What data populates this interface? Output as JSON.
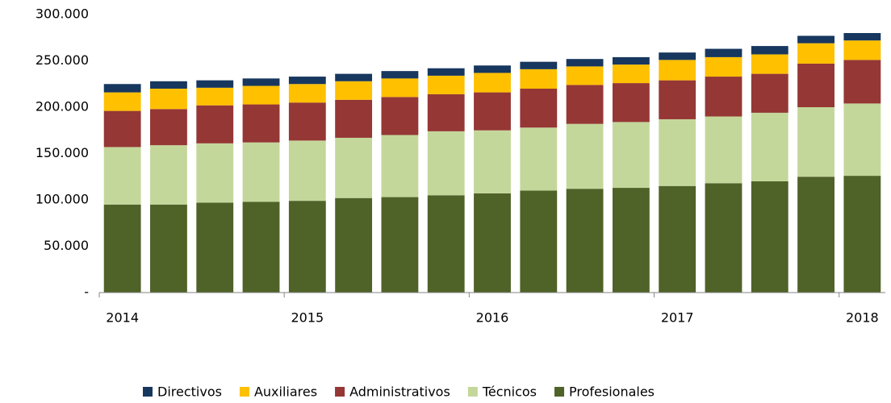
{
  "chart_data": {
    "type": "stacked-bar",
    "categories": [
      "2014",
      null,
      null,
      null,
      "2015",
      null,
      null,
      null,
      "2016",
      null,
      null,
      null,
      "2017",
      null,
      null,
      null,
      "2018"
    ],
    "series": [
      {
        "name": "Profesionales",
        "color": "#4f6228",
        "values": [
          95000,
          95000,
          97000,
          98000,
          99000,
          102000,
          103000,
          105000,
          107000,
          110000,
          112000,
          113000,
          115000,
          118000,
          120000,
          125000,
          126000
        ]
      },
      {
        "name": "Técnicos",
        "color": "#c4d79b",
        "values": [
          62000,
          64000,
          64000,
          64000,
          65000,
          65000,
          67000,
          69000,
          68000,
          68000,
          70000,
          71000,
          72000,
          72000,
          74000,
          75000,
          78000
        ]
      },
      {
        "name": "Administrativos",
        "color": "#953735",
        "values": [
          39000,
          39000,
          41000,
          41000,
          41000,
          41000,
          41000,
          40000,
          41000,
          42000,
          42000,
          42000,
          42000,
          43000,
          42000,
          47000,
          47000
        ]
      },
      {
        "name": "Auxiliares",
        "color": "#ffc000",
        "values": [
          20000,
          22000,
          19000,
          20000,
          20000,
          20000,
          20000,
          20000,
          21000,
          21000,
          20000,
          20000,
          22000,
          21000,
          21000,
          22000,
          21000
        ]
      },
      {
        "name": "Directivos",
        "color": "#17375e",
        "values": [
          9000,
          8000,
          8000,
          8000,
          8000,
          8000,
          8000,
          8000,
          8000,
          8000,
          8000,
          8000,
          8000,
          9000,
          9000,
          8000,
          8000
        ]
      }
    ],
    "ylim": [
      0,
      300000
    ],
    "yticks": [
      {
        "value": 0,
        "label": "-"
      },
      {
        "value": 50000,
        "label": "50.000"
      },
      {
        "value": 100000,
        "label": "100.000"
      },
      {
        "value": 150000,
        "label": "150.000"
      },
      {
        "value": 200000,
        "label": "200.000"
      },
      {
        "value": 250000,
        "label": "250.000"
      },
      {
        "value": 300000,
        "label": "300.000"
      }
    ],
    "legend": "bottom"
  }
}
